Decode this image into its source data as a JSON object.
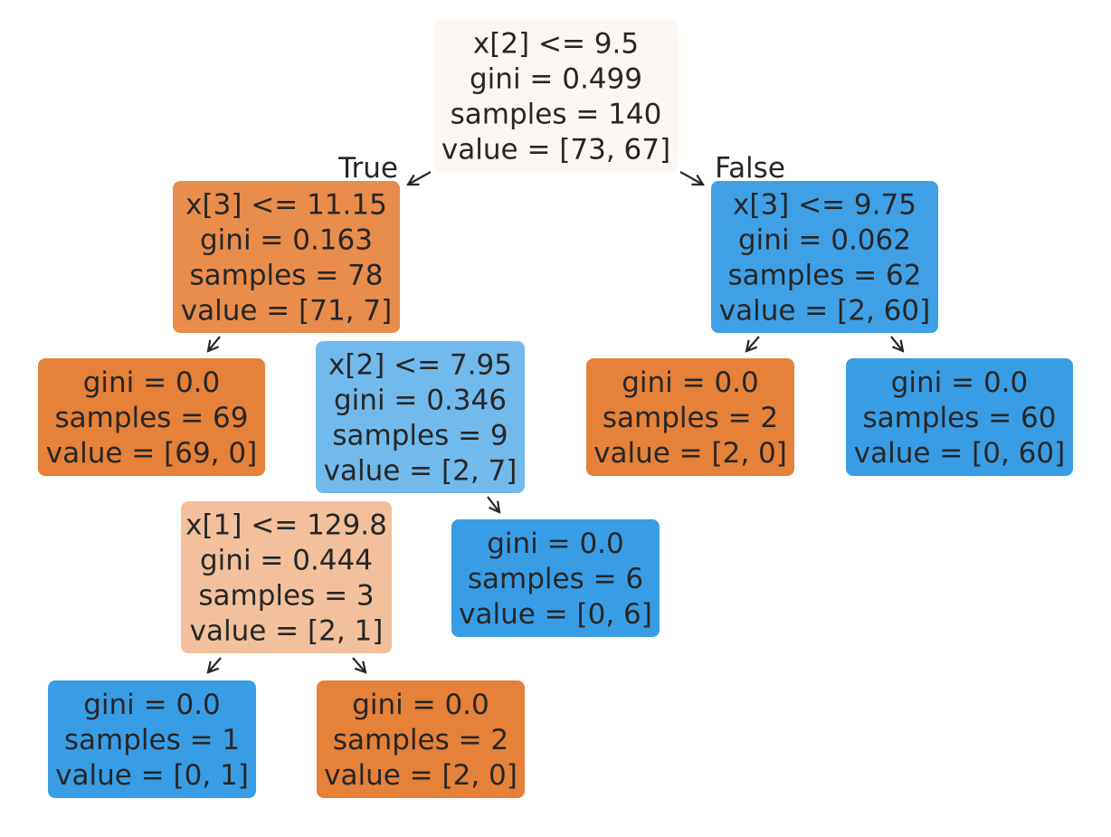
{
  "tree": {
    "edge_labels": {
      "true_label": "True",
      "false_label": "False"
    },
    "nodes": [
      {
        "id": "n0",
        "lines": [
          "x[2] <= 9.5",
          "gini = 0.499",
          "samples = 140",
          "value = [73, 67]"
        ],
        "fill": "#fdf7f3"
      },
      {
        "id": "n1",
        "lines": [
          "x[3] <= 11.15",
          "gini = 0.163",
          "samples = 78",
          "value = [71, 7]"
        ],
        "fill": "#e88d4c"
      },
      {
        "id": "n2",
        "lines": [
          "gini = 0.0",
          "samples = 69",
          "value = [69, 0]"
        ],
        "fill": "#e58139"
      },
      {
        "id": "n3",
        "lines": [
          "x[2] <= 7.95",
          "gini = 0.346",
          "samples = 9",
          "value = [2, 7]"
        ],
        "fill": "#72b9ec"
      },
      {
        "id": "n4",
        "lines": [
          "x[1] <= 129.8",
          "gini = 0.444",
          "samples = 3",
          "value = [2, 1]"
        ],
        "fill": "#f2c09c"
      },
      {
        "id": "n5",
        "lines": [
          "gini = 0.0",
          "samples = 1",
          "value = [0, 1]"
        ],
        "fill": "#399de5"
      },
      {
        "id": "n6",
        "lines": [
          "gini = 0.0",
          "samples = 2",
          "value = [2, 0]"
        ],
        "fill": "#e58139"
      },
      {
        "id": "n7",
        "lines": [
          "gini = 0.0",
          "samples = 6",
          "value = [0, 6]"
        ],
        "fill": "#399de5"
      },
      {
        "id": "n8",
        "lines": [
          "x[3] <= 9.75",
          "gini = 0.062",
          "samples = 62",
          "value = [2, 60]"
        ],
        "fill": "#3fa0e6"
      },
      {
        "id": "n9",
        "lines": [
          "gini = 0.0",
          "samples = 2",
          "value = [2, 0]"
        ],
        "fill": "#e58139"
      },
      {
        "id": "n10",
        "lines": [
          "gini = 0.0",
          "samples = 60",
          "value = [0, 60]"
        ],
        "fill": "#399de5"
      }
    ],
    "edges": [
      {
        "from": "n0",
        "to": "n1"
      },
      {
        "from": "n1",
        "to": "n2"
      },
      {
        "from": "n1",
        "to": "n3"
      },
      {
        "from": "n3",
        "to": "n4"
      },
      {
        "from": "n4",
        "to": "n5"
      },
      {
        "from": "n4",
        "to": "n6"
      },
      {
        "from": "n3",
        "to": "n7"
      },
      {
        "from": "n0",
        "to": "n8"
      },
      {
        "from": "n8",
        "to": "n9"
      },
      {
        "from": "n8",
        "to": "n10"
      }
    ]
  }
}
